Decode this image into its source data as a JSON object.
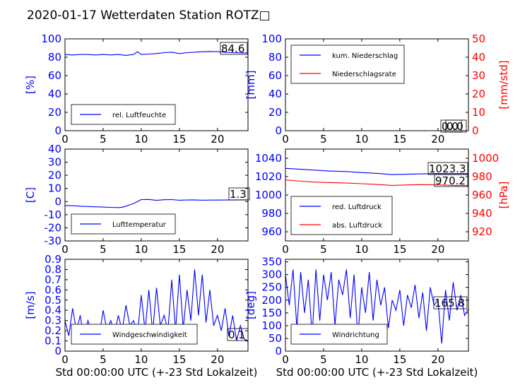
{
  "title": "2020-01-17 Wetterdaten Station ROTZ□",
  "colors": {
    "primary": "#0000ff",
    "secondary": "#ff0000",
    "axis": "#000000"
  },
  "chart_data": [
    {
      "id": "humidity",
      "type": "line",
      "xlim": [
        0,
        24
      ],
      "ylim": [
        0,
        100
      ],
      "xticks": [
        0,
        5,
        10,
        15,
        20
      ],
      "yticks": [
        0,
        20,
        40,
        60,
        80,
        100
      ],
      "ylabel": "[%]",
      "legend": {
        "placement": "bottom-left",
        "entries": [
          "rel. Luftfeuchte"
        ]
      },
      "annotations": [
        "84.6"
      ],
      "series": [
        {
          "name": "rel. Luftfeuchte",
          "color": "#0000ff",
          "x": [
            0,
            1,
            2,
            3,
            4,
            5,
            6,
            7,
            8,
            9,
            9.5,
            10,
            11,
            12,
            13,
            14,
            15,
            16,
            17,
            18,
            19,
            20,
            21,
            22,
            23,
            24
          ],
          "y": [
            83,
            82.5,
            83,
            83,
            82.5,
            83,
            82.5,
            83,
            82,
            83,
            86,
            83,
            83.5,
            84,
            85,
            85.5,
            84,
            85,
            85.5,
            86,
            86.2,
            86,
            85.5,
            85,
            84.8,
            84.6
          ]
        }
      ]
    },
    {
      "id": "precip",
      "type": "line",
      "xlim": [
        0,
        24
      ],
      "ylim": [
        0,
        100
      ],
      "ylim_right": [
        0,
        50
      ],
      "xticks": [
        0,
        5,
        10,
        15,
        20
      ],
      "yticks": [
        0,
        20,
        40,
        60,
        80,
        100
      ],
      "yticks_right": [
        0,
        10,
        20,
        30,
        40,
        50
      ],
      "ylabel": "[mm]",
      "ylabel_right": "[mm/std]",
      "legend": {
        "placement": "top-left",
        "entries": [
          "kum. Niederschlag",
          "Niederschlagsrate"
        ]
      },
      "annotations": [
        "0.0",
        "0.0"
      ],
      "series": [
        {
          "name": "kum. Niederschlag",
          "color": "#0000ff",
          "x": [
            0,
            24
          ],
          "y": [
            0,
            0
          ]
        },
        {
          "name": "Niederschlagsrate",
          "color": "#ff0000",
          "axis": "right",
          "x": [
            0,
            24
          ],
          "y": [
            0,
            0
          ]
        }
      ]
    },
    {
      "id": "temperature",
      "type": "line",
      "xlim": [
        0,
        24
      ],
      "ylim": [
        -30,
        40
      ],
      "xticks": [
        0,
        5,
        10,
        15,
        20
      ],
      "yticks": [
        -30,
        -20,
        -10,
        0,
        10,
        20,
        30,
        40
      ],
      "ylabel": "[C]",
      "legend": {
        "placement": "bottom-left",
        "entries": [
          "Lufttemperatur"
        ]
      },
      "annotations": [
        "1.3"
      ],
      "series": [
        {
          "name": "Lufttemperatur",
          "color": "#0000ff",
          "x": [
            0,
            1,
            2,
            3,
            4,
            5,
            6,
            7,
            7.5,
            8,
            8.5,
            9,
            9.5,
            10,
            11,
            12,
            13,
            14,
            15,
            16,
            17,
            18,
            19,
            20,
            21,
            22,
            23,
            24
          ],
          "y": [
            -3,
            -3.2,
            -3.5,
            -3.8,
            -4,
            -4.2,
            -4.4,
            -4.6,
            -4.3,
            -3.5,
            -2.5,
            -1.5,
            0,
            1.5,
            1.6,
            0.9,
            1.4,
            1.5,
            1.0,
            1.2,
            1.3,
            1.0,
            1.1,
            1.1,
            1.2,
            1.2,
            1.3,
            1.3
          ]
        }
      ]
    },
    {
      "id": "pressure",
      "type": "line",
      "xlim": [
        0,
        24
      ],
      "ylim": [
        950,
        1050
      ],
      "ylim_right": [
        910,
        1010
      ],
      "xticks": [
        0,
        5,
        10,
        15,
        20
      ],
      "yticks": [
        960,
        980,
        1000,
        1020,
        1040
      ],
      "yticks_right": [
        920,
        940,
        960,
        980,
        1000
      ],
      "ylabel_right": "[hPa]",
      "legend": {
        "placement": "bottom-left",
        "entries": [
          "red. Luftdruck",
          "abs. Luftdruck"
        ]
      },
      "annotations": [
        "1023.3",
        "970.2"
      ],
      "series": [
        {
          "name": "red. Luftdruck",
          "color": "#0000ff",
          "x": [
            0,
            2,
            4,
            6,
            8,
            10,
            12,
            14,
            16,
            18,
            20,
            22,
            24
          ],
          "y": [
            1029,
            1028,
            1027,
            1026,
            1025.5,
            1024.5,
            1023.5,
            1022.2,
            1022.6,
            1023,
            1023.4,
            1023.3,
            1023.3
          ]
        },
        {
          "name": "abs. Luftdruck",
          "color": "#ff0000",
          "axis": "right",
          "x": [
            0,
            2,
            4,
            6,
            8,
            10,
            12,
            14,
            16,
            18,
            20,
            22,
            24
          ],
          "y": [
            976.5,
            975,
            974,
            973.5,
            973,
            972.3,
            971.5,
            970.5,
            971,
            971.3,
            971,
            970.5,
            970.2
          ]
        }
      ]
    },
    {
      "id": "wind_speed",
      "type": "line",
      "xlim": [
        0,
        24
      ],
      "ylim": [
        0,
        0.9
      ],
      "xticks": [
        0,
        5,
        10,
        15,
        20
      ],
      "yticks": [
        0.0,
        0.1,
        0.2,
        0.3,
        0.4,
        0.5,
        0.6,
        0.7,
        0.8,
        0.9
      ],
      "ylabel": "[m/s]",
      "xlabel": "Std 00:00:00 UTC (+-23 Std Lokalzeit)",
      "legend": {
        "placement": "bottom-center",
        "entries": [
          "Windgeschwindigkeit"
        ]
      },
      "annotations": [
        "0.1"
      ],
      "series": [
        {
          "name": "Windgeschwindigkeit",
          "color": "#0000ff",
          "x": [
            0,
            0.5,
            1,
            1.5,
            2,
            2.5,
            3,
            3.5,
            4,
            4.5,
            5,
            5.5,
            6,
            6.5,
            7,
            7.5,
            8,
            8.5,
            9,
            9.5,
            10,
            10.5,
            11,
            11.5,
            12,
            12.5,
            13,
            13.5,
            14,
            14.5,
            15,
            15.5,
            16,
            16.5,
            17,
            17.5,
            18,
            18.5,
            19,
            19.5,
            20,
            20.5,
            21,
            21.5,
            22,
            22.5,
            23,
            23.5,
            24
          ],
          "y": [
            0.3,
            0.15,
            0.42,
            0.2,
            0.35,
            0.1,
            0.3,
            0.2,
            0.26,
            0.15,
            0.4,
            0.2,
            0.3,
            0.18,
            0.35,
            0.2,
            0.45,
            0.25,
            0.3,
            0.15,
            0.55,
            0.2,
            0.6,
            0.18,
            0.62,
            0.25,
            0.35,
            0.2,
            0.7,
            0.2,
            0.75,
            0.22,
            0.6,
            0.3,
            0.8,
            0.35,
            0.75,
            0.28,
            0.6,
            0.25,
            0.35,
            0.2,
            0.42,
            0.15,
            0.35,
            0.1,
            0.25,
            0.12,
            0.1
          ]
        }
      ]
    },
    {
      "id": "wind_dir",
      "type": "line",
      "xlim": [
        0,
        24
      ],
      "ylim": [
        0,
        360
      ],
      "xticks": [
        0,
        5,
        10,
        15,
        20
      ],
      "yticks": [
        0,
        50,
        100,
        150,
        200,
        250,
        300,
        350
      ],
      "ylabel": "[deg]",
      "xlabel": "Std 00:00:00 UTC (+-23 Std Lokalzeit)",
      "legend": {
        "placement": "bottom-left",
        "entries": [
          "Windrichtung"
        ]
      },
      "annotations": [
        "165.8"
      ],
      "series": [
        {
          "name": "Windrichtung",
          "color": "#0000ff",
          "x": [
            0,
            0.5,
            1,
            1.5,
            2,
            2.5,
            3,
            3.5,
            4,
            4.5,
            5,
            5.5,
            6,
            6.5,
            7,
            7.5,
            8,
            8.5,
            9,
            9.5,
            10,
            10.5,
            11,
            11.5,
            12,
            12.5,
            13,
            13.5,
            14,
            14.5,
            15,
            15.5,
            16,
            16.5,
            17,
            17.5,
            18,
            18.5,
            19,
            19.5,
            20,
            20.5,
            21,
            21.5,
            22,
            22.5,
            23,
            23.5,
            24
          ],
          "y": [
            300,
            180,
            320,
            90,
            310,
            150,
            280,
            60,
            320,
            120,
            300,
            200,
            310,
            100,
            280,
            220,
            320,
            130,
            300,
            50,
            250,
            150,
            310,
            120,
            280,
            180,
            250,
            90,
            200,
            160,
            240,
            100,
            220,
            170,
            260,
            130,
            230,
            80,
            250,
            180,
            200,
            30,
            240,
            120,
            270,
            160,
            220,
            140,
            165.8
          ]
        }
      ]
    }
  ]
}
